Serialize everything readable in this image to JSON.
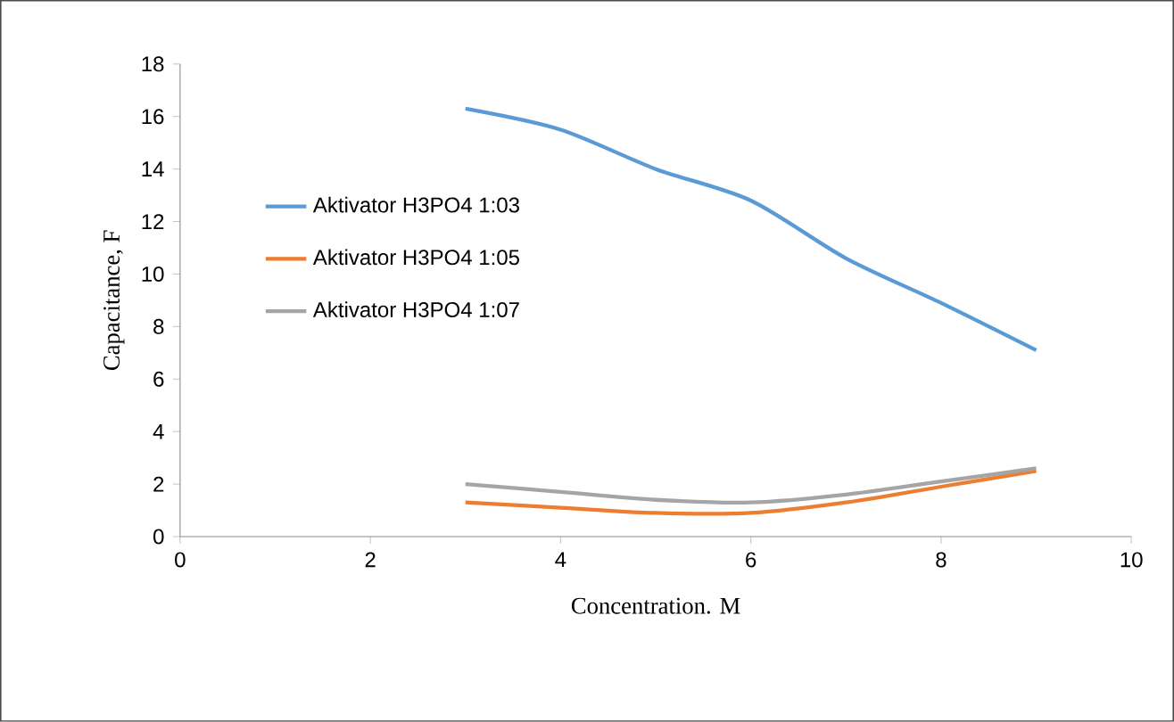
{
  "chart_data": {
    "type": "line",
    "xlabel": "Concentration. M",
    "ylabel": "Capacitance, F",
    "xlim": [
      0,
      10
    ],
    "xticks": [
      0,
      2,
      4,
      6,
      8,
      10
    ],
    "ylim": [
      0,
      18
    ],
    "yticks": [
      0,
      2,
      4,
      6,
      8,
      10,
      12,
      14,
      16,
      18
    ],
    "grid": false,
    "legend": "left",
    "marker": "none",
    "line_style": "solid",
    "x": [
      3,
      4,
      5,
      6,
      7,
      8,
      9
    ],
    "series": [
      {
        "name": "Aktivator H3PO4 1:03",
        "color": "#5b9bd5",
        "values": [
          16.3,
          15.5,
          14.0,
          12.8,
          10.6,
          8.9,
          7.1
        ]
      },
      {
        "name": "Aktivator H3PO4 1:05",
        "color": "#ed7d31",
        "values": [
          1.3,
          1.1,
          0.9,
          0.9,
          1.3,
          1.9,
          2.5
        ]
      },
      {
        "name": "Aktivator H3PO4 1:07",
        "color": "#a5a5a5",
        "values": [
          2.0,
          1.7,
          1.4,
          1.3,
          1.6,
          2.1,
          2.6
        ]
      }
    ]
  }
}
